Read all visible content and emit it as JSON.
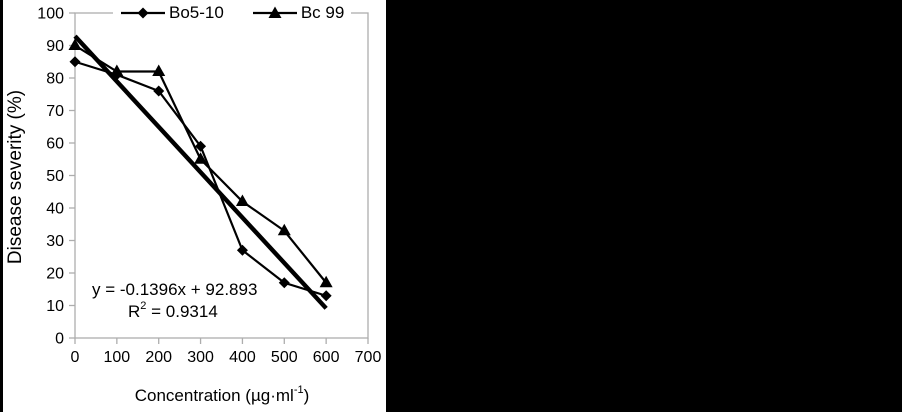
{
  "chart_data": {
    "type": "line",
    "title": "",
    "ylabel": "Disease severity (%)",
    "xlabel": {
      "prefix": "Concentration (µg·ml",
      "sup": "-1",
      "suffix": ")"
    },
    "xlim": [
      0,
      700
    ],
    "ylim": [
      0,
      100
    ],
    "x_ticks": [
      0,
      100,
      200,
      300,
      400,
      500,
      600,
      700
    ],
    "y_ticks": [
      0,
      10,
      20,
      30,
      40,
      50,
      60,
      70,
      80,
      90,
      100
    ],
    "grid": false,
    "legend_position": "top",
    "x": [
      0,
      100,
      200,
      300,
      400,
      500,
      600
    ],
    "series": [
      {
        "name": "Bo5-10",
        "marker": "diamond",
        "values": [
          85,
          81,
          76,
          59,
          27,
          17,
          13
        ]
      },
      {
        "name": "Bc 99",
        "marker": "triangle",
        "values": [
          90,
          82,
          82,
          55,
          42,
          33,
          17
        ]
      }
    ],
    "trendline": {
      "slope": -0.1396,
      "intercept": 92.893,
      "x_start": 0,
      "x_end": 600,
      "r_squared": 0.9314,
      "equation_label": "y = -0.1396x + 92.893",
      "r2": {
        "prefix": "R",
        "sup": "2",
        "suffix": " = 0.9314"
      }
    },
    "colors": {
      "series": "#000000",
      "axis": "#adadad",
      "background": "#ffffff",
      "surround": "#000000"
    }
  }
}
